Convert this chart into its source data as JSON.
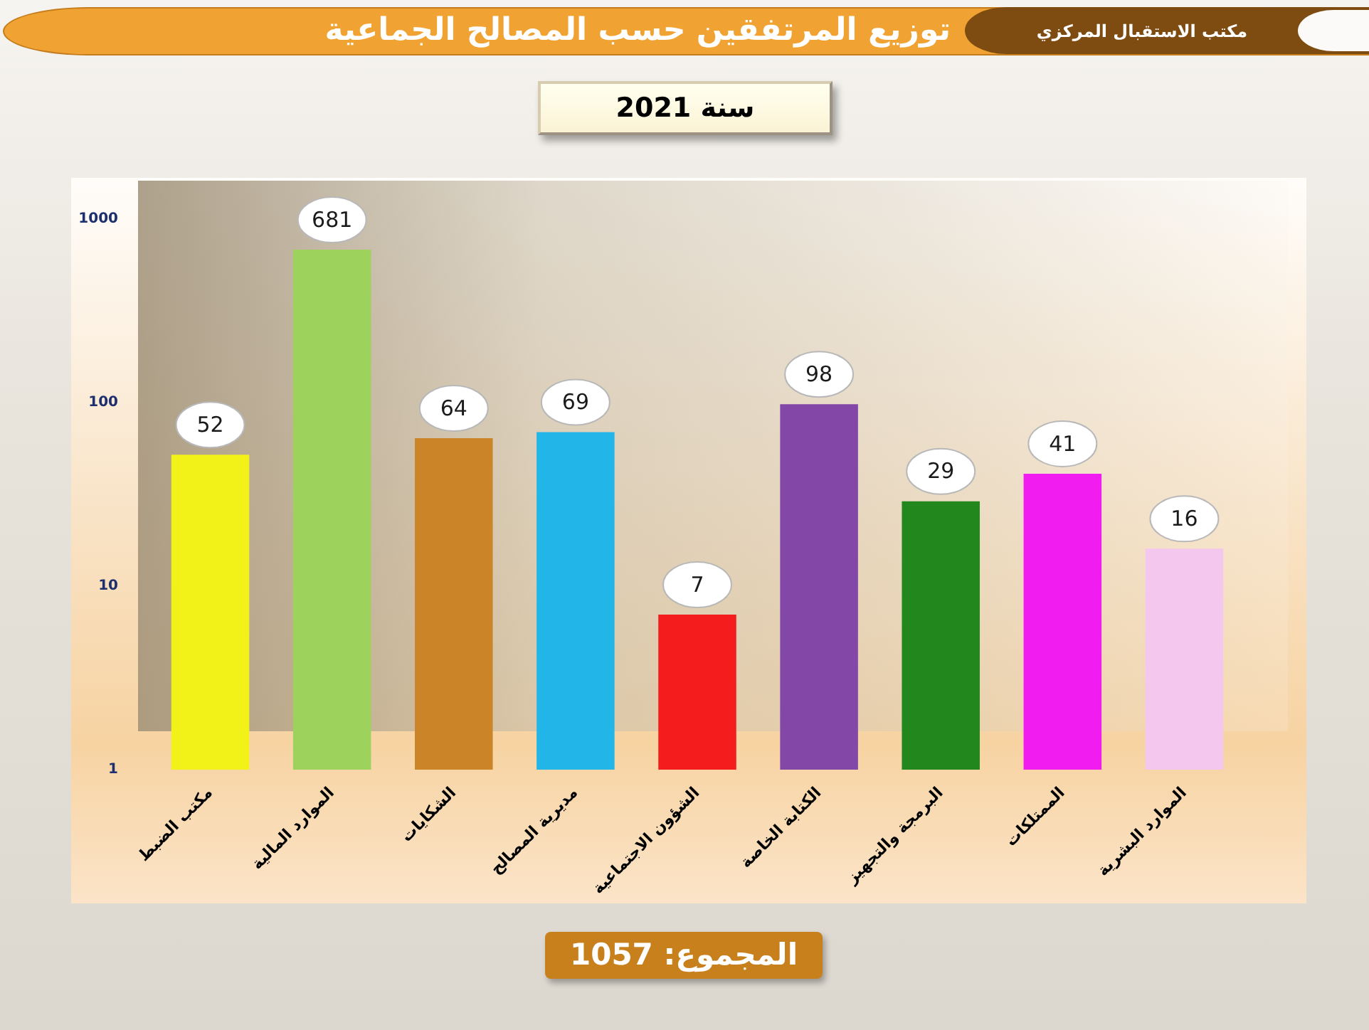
{
  "chart_data": {
    "type": "bar",
    "title": "توزيع المرتفقين حسب المصالح الجماعية",
    "subtitle": "سنة 2021",
    "annotations": [
      "مكتب الاستقبال المركزي",
      "المجموع: 1057"
    ],
    "categories": [
      "مكتب الضبط",
      "الموارد المالية",
      "الشكايات",
      "مديرية المصالح",
      "الشؤون الاجتماعية",
      "الكتابة الخاصة",
      "البرمجة والتجهيز",
      "الممتلكات",
      "الموارد البشرية"
    ],
    "values": [
      52,
      681,
      64,
      69,
      7,
      98,
      29,
      41,
      16
    ],
    "colors": [
      "#f2f218",
      "#9dd35c",
      "#cc8428",
      "#22b5e8",
      "#f41c1c",
      "#8347a8",
      "#22881e",
      "#f01cf0",
      "#f4c8ee"
    ],
    "log": true,
    "ylim": [
      1,
      1000
    ],
    "yticks": [
      1,
      10,
      100,
      1000
    ],
    "grid": false,
    "legend": false,
    "data_labels": true
  }
}
